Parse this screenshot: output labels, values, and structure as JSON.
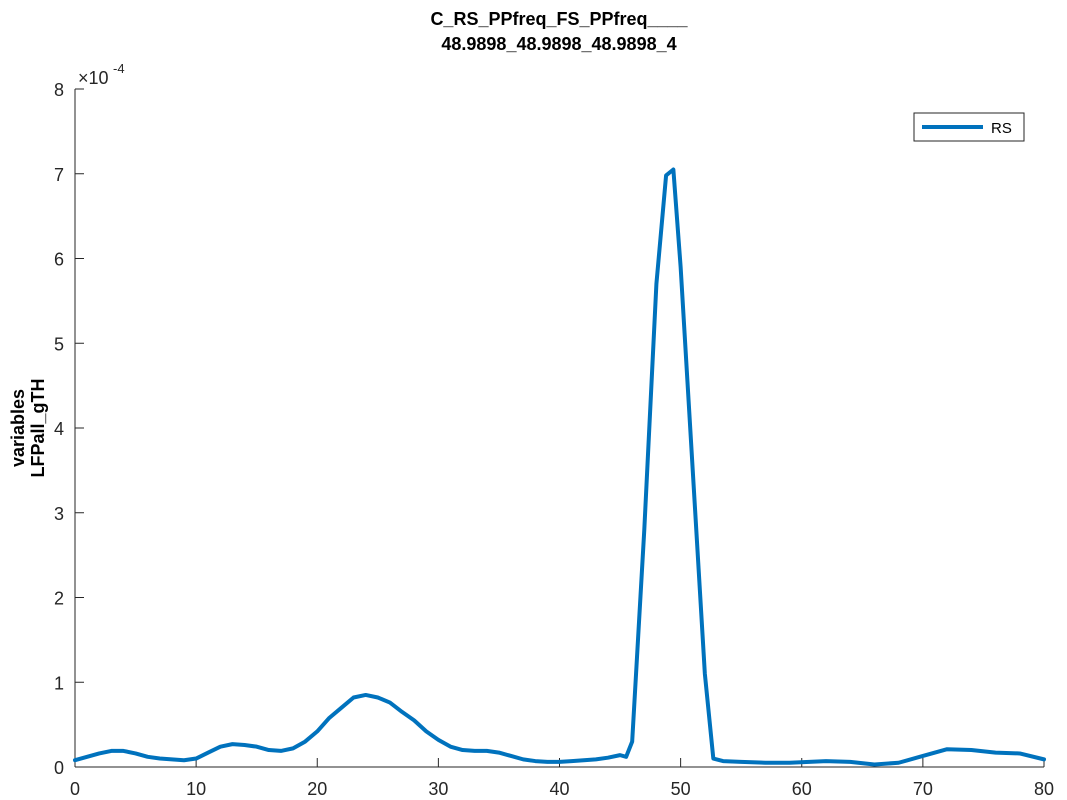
{
  "chart_data": {
    "type": "line",
    "title": [
      "C_RS_PPfreq_FS_PPfreq____",
      "48.9898_48.9898_48.9898_4"
    ],
    "ylabel": [
      "variables",
      "LFPall_gTH"
    ],
    "xlabel": "",
    "xlim": [
      0,
      80
    ],
    "ylim": [
      0,
      8
    ],
    "xticks": [
      0,
      10,
      20,
      30,
      40,
      50,
      60,
      70,
      80
    ],
    "yticks": [
      0,
      1,
      2,
      3,
      4,
      5,
      6,
      7,
      8
    ],
    "y_exponent_base": "×10",
    "y_exponent_power": "-4",
    "grid": false,
    "legend_location": "top-right",
    "series": [
      {
        "name": "RS",
        "color": "#0072BD",
        "x": [
          0,
          1,
          2,
          3,
          4,
          5,
          6,
          7,
          8,
          9,
          10,
          11,
          12,
          13,
          14,
          15,
          16,
          17,
          18,
          19,
          20,
          21,
          22,
          23,
          24,
          25,
          26,
          27,
          28,
          29,
          30,
          31,
          32,
          33,
          34,
          35,
          36,
          37,
          38,
          39,
          40,
          41,
          42,
          43,
          44,
          45,
          45.5,
          46,
          47,
          48,
          48.8,
          49.4,
          50,
          51,
          52,
          52.7,
          53.5,
          55,
          57,
          59,
          62,
          64,
          66,
          68,
          70,
          72,
          74,
          76,
          78,
          80
        ],
        "y": [
          0.08,
          0.12,
          0.16,
          0.19,
          0.19,
          0.16,
          0.12,
          0.1,
          0.09,
          0.08,
          0.1,
          0.17,
          0.24,
          0.27,
          0.26,
          0.24,
          0.2,
          0.19,
          0.22,
          0.3,
          0.42,
          0.58,
          0.7,
          0.82,
          0.85,
          0.82,
          0.76,
          0.65,
          0.55,
          0.42,
          0.32,
          0.24,
          0.2,
          0.19,
          0.19,
          0.17,
          0.13,
          0.09,
          0.07,
          0.06,
          0.06,
          0.07,
          0.08,
          0.09,
          0.11,
          0.14,
          0.12,
          0.3,
          2.8,
          5.7,
          6.98,
          7.05,
          5.9,
          3.5,
          1.1,
          0.1,
          0.07,
          0.06,
          0.05,
          0.05,
          0.07,
          0.06,
          0.03,
          0.05,
          0.13,
          0.21,
          0.2,
          0.17,
          0.16,
          0.09
        ]
      }
    ]
  }
}
